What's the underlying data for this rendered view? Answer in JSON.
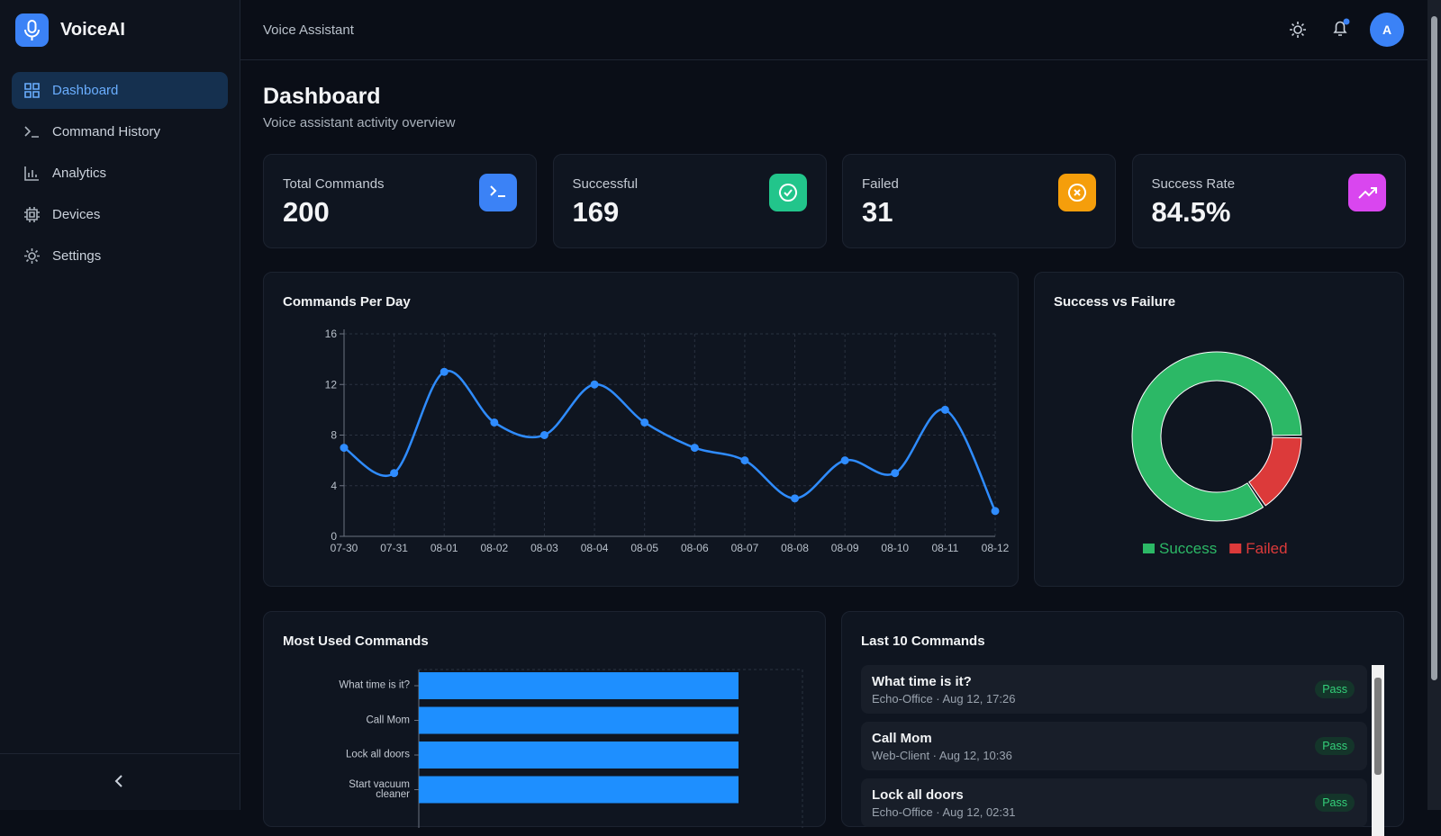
{
  "app": {
    "name": "VoiceAI",
    "section": "Voice Assistant",
    "avatar": "A"
  },
  "nav": {
    "items": [
      "Dashboard",
      "Command History",
      "Analytics",
      "Devices",
      "Settings"
    ],
    "active": 0
  },
  "page": {
    "title": "Dashboard",
    "subtitle": "Voice assistant activity overview"
  },
  "stats": [
    {
      "label": "Total Commands",
      "value": 200,
      "color": "#3b82f6"
    },
    {
      "label": "Successful",
      "value": 169,
      "color": "#22c58b"
    },
    {
      "label": "Failed",
      "value": 31,
      "color": "#f59e0b"
    },
    {
      "label": "Success Rate",
      "value": "84.5%",
      "color": "#d946ef"
    }
  ],
  "line_chart": {
    "type": "line",
    "title": "Commands Per Day",
    "categories": [
      "07-30",
      "07-31",
      "08-01",
      "08-02",
      "08-03",
      "08-04",
      "08-05",
      "08-06",
      "08-07",
      "08-08",
      "08-09",
      "08-10",
      "08-11",
      "08-12"
    ],
    "values": [
      7,
      5,
      13,
      9,
      8,
      12,
      9,
      7,
      6,
      3,
      6,
      5,
      10,
      2
    ],
    "color": "#2f8cff",
    "ylim": [
      0,
      16
    ],
    "yticks": [
      0,
      4,
      8,
      12,
      16
    ],
    "grid": true
  },
  "donut_chart": {
    "type": "pie",
    "title": "Success vs Failure",
    "series": [
      {
        "name": "Success",
        "color": "#2cb866",
        "value": 169
      },
      {
        "name": "Failed",
        "color": "#dc3a3a",
        "value": 31
      }
    ]
  },
  "bar_chart": {
    "type": "bar",
    "orientation": "horizontal",
    "title": "Most Used Commands",
    "categories": [
      "What time is it?",
      "Call Mom",
      "Lock all doors",
      "Start vacuum cleaner"
    ],
    "values": [
      5,
      5,
      5,
      5
    ],
    "xlim": [
      0,
      6
    ],
    "color": "#1e8fff"
  },
  "recent": {
    "title": "Last 10 Commands",
    "items": [
      {
        "command": "What time is it?",
        "meta": "Echo-Office · Aug 12, 17:26",
        "status": "Pass"
      },
      {
        "command": "Call Mom",
        "meta": "Web-Client · Aug 12, 10:36",
        "status": "Pass"
      },
      {
        "command": "Lock all doors",
        "meta": "Echo-Office · Aug 12, 02:31",
        "status": "Pass"
      }
    ]
  }
}
